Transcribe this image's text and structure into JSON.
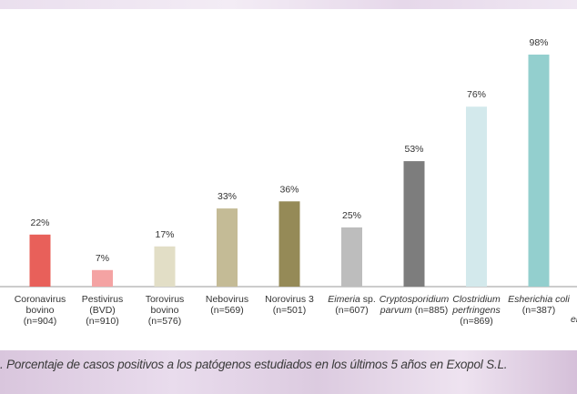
{
  "caption": ". Porcentaje de casos positivos a los patógenos estudiados en los últimos 5 años en Exopol S.L.",
  "chart_data": {
    "type": "bar",
    "ylim": [
      0,
      100
    ],
    "grid": false,
    "bars": [
      {
        "value": 22,
        "label": "22%",
        "name_lines": [
          {
            "t": "Coronavirus",
            "i": false
          },
          {
            "t": "bovino",
            "i": false
          }
        ],
        "n_line": "(n=904)",
        "color": "#e8605a"
      },
      {
        "value": 7,
        "label": "7%",
        "name_lines": [
          {
            "t": "Pestivirus",
            "i": false
          },
          {
            "t": "(BVD)",
            "i": false
          }
        ],
        "n_line": "(n=910)",
        "color": "#f4a3a3"
      },
      {
        "value": 17,
        "label": "17%",
        "name_lines": [
          {
            "t": "Torovirus",
            "i": false
          },
          {
            "t": "bovino",
            "i": false
          }
        ],
        "n_line": "(n=576)",
        "color": "#e2dec6"
      },
      {
        "value": 33,
        "label": "33%",
        "name_lines": [
          {
            "t": "Nebovirus",
            "i": false
          }
        ],
        "n_line": "(n=569)",
        "color": "#c4bb96"
      },
      {
        "value": 36,
        "label": "36%",
        "name_lines": [
          {
            "t": "Norovirus 3",
            "i": false
          }
        ],
        "n_line": "(n=501)",
        "color": "#958a57"
      },
      {
        "value": 25,
        "label": "25%",
        "name_lines": [
          {
            "t": "Eimeria",
            "i": true,
            "suffix": " sp."
          }
        ],
        "n_line": "(n=607)",
        "color": "#bdbdbd"
      },
      {
        "value": 53,
        "label": "53%",
        "name_lines": [
          {
            "t": "Cryptosporidium",
            "i": true
          },
          {
            "t": "parvum",
            "i": true,
            "suffix": " (n=885)"
          }
        ],
        "n_line": "",
        "color": "#7d7d7d"
      },
      {
        "value": 76,
        "label": "76%",
        "name_lines": [
          {
            "t": "Clostridium",
            "i": true
          },
          {
            "t": "perfringens",
            "i": true
          }
        ],
        "n_line": "(n=869)",
        "color": "#d3e9ec"
      },
      {
        "value": 98,
        "label": "98%",
        "name_lines": [
          {
            "t": "Esherichia coli",
            "i": true
          }
        ],
        "n_line": "(n=387)",
        "color": "#93cfce"
      }
    ],
    "partial_label": "er"
  }
}
